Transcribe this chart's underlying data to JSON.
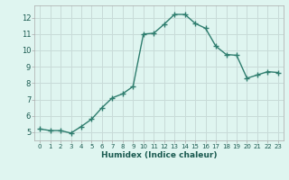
{
  "x": [
    0,
    1,
    2,
    3,
    4,
    5,
    6,
    7,
    8,
    9,
    10,
    11,
    12,
    13,
    14,
    15,
    16,
    17,
    18,
    19,
    20,
    21,
    22,
    23
  ],
  "y": [
    5.2,
    5.1,
    5.1,
    4.95,
    5.35,
    5.8,
    6.5,
    7.1,
    7.35,
    7.8,
    11.0,
    11.05,
    11.6,
    12.2,
    12.2,
    11.65,
    11.35,
    10.25,
    9.75,
    9.7,
    8.3,
    8.5,
    8.7,
    8.65
  ],
  "line_color": "#2e7d6e",
  "bg_color": "#dff5f0",
  "grid_color": "#c8dbd8",
  "xlabel": "Humidex (Indice chaleur)",
  "ylabel_ticks": [
    5,
    6,
    7,
    8,
    9,
    10,
    11,
    12
  ],
  "xlim": [
    -0.5,
    23.5
  ],
  "ylim": [
    4.5,
    12.75
  ],
  "marker": "+",
  "marker_size": 4.0,
  "linewidth": 1.0
}
